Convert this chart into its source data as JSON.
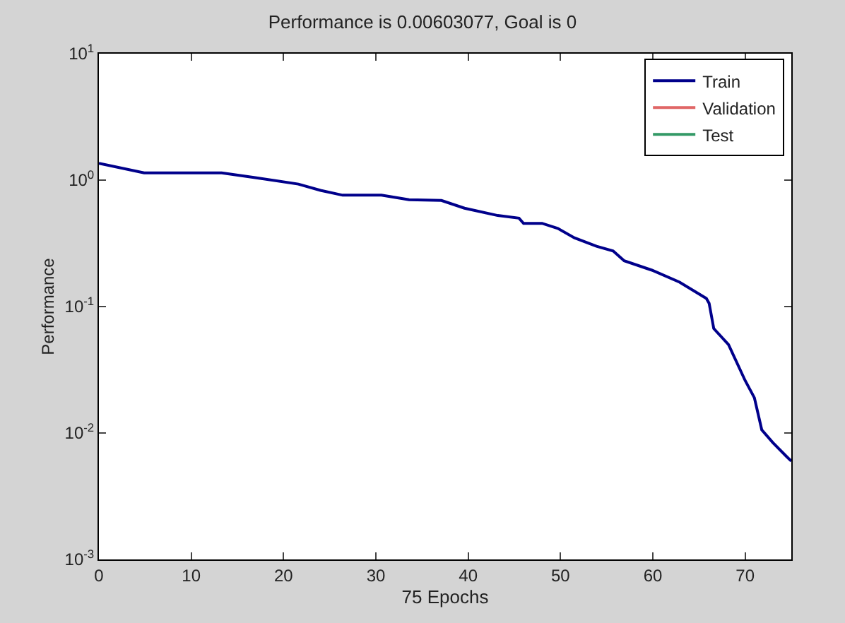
{
  "chart_data": {
    "type": "line",
    "title": "Performance is 0.00603077, Goal is 0",
    "xlabel": "75 Epochs",
    "ylabel": "Performance",
    "log": "y",
    "legend": "top right",
    "marker": "none",
    "line_style": "solid",
    "xlim": [
      0,
      75
    ],
    "xticks": [
      0,
      10,
      20,
      30,
      40,
      50,
      60,
      70
    ],
    "ylim": [
      0.001,
      10
    ],
    "yticks": [
      {
        "value": 0.001,
        "label": "10$^{-3}$"
      },
      {
        "value": 0.01,
        "label": "10$^{-2}$"
      },
      {
        "value": 0.1,
        "label": "10$^{-1}$"
      },
      {
        "value": 1,
        "label": "10$^{0}$"
      },
      {
        "value": 10,
        "label": "10$^{1}$"
      }
    ],
    "x": [
      0,
      4.9,
      13.3,
      16.8,
      21.6,
      24,
      26.4,
      30.6,
      33.6,
      37.1,
      39.6,
      43.2,
      45.5,
      46,
      48,
      49.7,
      51.5,
      53.9,
      55.7,
      56.9,
      59.9,
      62.9,
      65.8,
      66.1,
      66.6,
      68.2,
      70,
      71,
      71.8,
      73,
      74.5,
      75
    ],
    "series": [
      {
        "name": "Train",
        "color": "#00008b",
        "values": [
          1.36,
          1.14,
          1.14,
          1.05,
          0.93,
          0.83,
          0.76,
          0.76,
          0.7,
          0.69,
          0.6,
          0.525,
          0.5,
          0.455,
          0.455,
          0.415,
          0.35,
          0.3,
          0.275,
          0.23,
          0.194,
          0.156,
          0.116,
          0.106,
          0.067,
          0.05,
          0.026,
          0.019,
          0.0106,
          0.0084,
          0.0065,
          0.006
        ]
      },
      {
        "name": "Validation",
        "color": "#e06666",
        "values": [
          null,
          null,
          null,
          null,
          null,
          null,
          null,
          null,
          null,
          null,
          null,
          null,
          null,
          null,
          null,
          null,
          null,
          null,
          null,
          null,
          null,
          null,
          null,
          null,
          null,
          null,
          null,
          null,
          null,
          null,
          null,
          null
        ]
      },
      {
        "name": "Test",
        "color": "#339966",
        "values": [
          null,
          null,
          null,
          null,
          null,
          null,
          null,
          null,
          null,
          null,
          null,
          null,
          null,
          null,
          null,
          null,
          null,
          null,
          null,
          null,
          null,
          null,
          null,
          null,
          null,
          null,
          null,
          null,
          null,
          null,
          null,
          null
        ]
      }
    ]
  }
}
